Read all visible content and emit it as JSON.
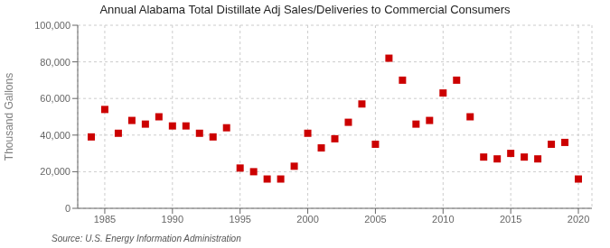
{
  "chart_data": {
    "type": "scatter",
    "title": "Annual Alabama Total Distillate Adj Sales/Deliveries to Commercial Consumers",
    "ylabel": "Thousand Gallons",
    "annotations": [
      "Source: U.S. Energy Information Administration"
    ],
    "x": [
      1984,
      1985,
      1986,
      1987,
      1988,
      1989,
      1990,
      1991,
      1992,
      1993,
      1994,
      1995,
      1996,
      1997,
      1998,
      1999,
      2000,
      2001,
      2002,
      2003,
      2004,
      2005,
      2006,
      2007,
      2008,
      2009,
      2010,
      2011,
      2012,
      2013,
      2014,
      2015,
      2016,
      2017,
      2018,
      2019,
      2020
    ],
    "values": [
      39000,
      54000,
      41000,
      48000,
      46000,
      50000,
      45000,
      45000,
      41000,
      39000,
      44000,
      22000,
      20000,
      16000,
      16000,
      23000,
      41000,
      33000,
      38000,
      47000,
      57000,
      35000,
      82000,
      70000,
      46000,
      48000,
      63000,
      70000,
      50000,
      28000,
      27000,
      30000,
      28000,
      27000,
      35000,
      36000,
      16000
    ],
    "color": "#CC0000",
    "marker": "square",
    "xlim": [
      1983,
      2021
    ],
    "xticks": [
      1985,
      1990,
      1995,
      2000,
      2005,
      2010,
      2015,
      2020
    ],
    "ylim": [
      0,
      100000
    ],
    "yticks": [
      0,
      {
        "value": 20000,
        "label": "20,000"
      },
      {
        "value": 40000,
        "label": "40,000"
      },
      {
        "value": 60000,
        "label": "60,000"
      },
      {
        "value": 80000,
        "label": "80,000"
      },
      {
        "value": 100000,
        "label": "100,000"
      }
    ],
    "grid": true
  }
}
